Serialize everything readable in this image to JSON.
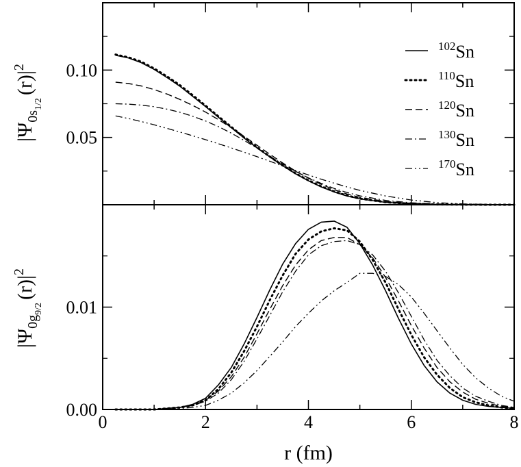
{
  "chart_data": [
    {
      "type": "line",
      "panel": "top",
      "ylabel": {
        "prefix": "|Ψ",
        "sub": "0s",
        "subsub": "1/2",
        "mid": "(r)|",
        "sup": "2"
      },
      "xlim": [
        0,
        8
      ],
      "ylim": [
        0,
        0.15
      ],
      "yticks": [
        {
          "v": 0.05,
          "label": "0.05"
        },
        {
          "v": 0.1,
          "label": "0.10"
        }
      ],
      "x": [
        0.25,
        0.5,
        0.75,
        1.0,
        1.25,
        1.5,
        1.75,
        2.0,
        2.25,
        2.5,
        2.75,
        3.0,
        3.25,
        3.5,
        3.75,
        4.0,
        4.25,
        4.5,
        4.75,
        5.0,
        5.5,
        6.0,
        6.5,
        7.0,
        7.5,
        8.0
      ],
      "series": [
        {
          "name": "102Sn",
          "nucleus": "Sn",
          "mass": "102",
          "style": "solid",
          "values": [
            0.111,
            0.109,
            0.1055,
            0.1005,
            0.0945,
            0.088,
            0.0805,
            0.0728,
            0.065,
            0.0572,
            0.0495,
            0.0422,
            0.0355,
            0.029,
            0.023,
            0.0178,
            0.0132,
            0.0095,
            0.0065,
            0.0043,
            0.0018,
            0.0006,
            0.0002,
            0.0001,
            0.0,
            0.0
          ]
        },
        {
          "name": "110Sn",
          "nucleus": "Sn",
          "mass": "110",
          "style": "dotted",
          "values": [
            0.1115,
            0.1095,
            0.1062,
            0.1012,
            0.0953,
            0.0888,
            0.0813,
            0.0735,
            0.0656,
            0.0578,
            0.05,
            0.0426,
            0.0357,
            0.0292,
            0.0233,
            0.0181,
            0.0136,
            0.0098,
            0.0068,
            0.0046,
            0.0019,
            0.0007,
            0.0002,
            0.0001,
            0.0,
            0.0
          ]
        },
        {
          "name": "120Sn",
          "nucleus": "Sn",
          "mass": "120",
          "style": "dashed",
          "values": [
            0.091,
            0.09,
            0.0882,
            0.0855,
            0.0822,
            0.0782,
            0.0738,
            0.0688,
            0.0632,
            0.0572,
            0.0508,
            0.0442,
            0.0375,
            0.031,
            0.025,
            0.0197,
            0.0151,
            0.0112,
            0.008,
            0.0055,
            0.0024,
            0.0009,
            0.0003,
            0.0001,
            0.0,
            0.0
          ]
        },
        {
          "name": "130Sn",
          "nucleus": "Sn",
          "mass": "130",
          "style": "dashdot",
          "values": [
            0.075,
            0.0747,
            0.074,
            0.0728,
            0.071,
            0.0687,
            0.0657,
            0.0622,
            0.058,
            0.0532,
            0.0478,
            0.042,
            0.036,
            0.0302,
            0.0248,
            0.02,
            0.0158,
            0.0121,
            0.0091,
            0.0066,
            0.0032,
            0.0014,
            0.0006,
            0.0002,
            0.0001,
            0.0
          ]
        },
        {
          "name": "170Sn",
          "nucleus": "Sn",
          "mass": "170",
          "style": "dashdotdot",
          "values": [
            0.066,
            0.064,
            0.0618,
            0.0594,
            0.0567,
            0.054,
            0.0512,
            0.0483,
            0.0453,
            0.0422,
            0.039,
            0.0357,
            0.0323,
            0.0288,
            0.0254,
            0.0221,
            0.0189,
            0.016,
            0.0132,
            0.0107,
            0.0065,
            0.0035,
            0.0016,
            0.0006,
            0.0002,
            0.0
          ]
        }
      ]
    },
    {
      "type": "line",
      "panel": "bottom",
      "xlabel": "r (fm)",
      "ylabel": {
        "prefix": "|Ψ",
        "sub": "0g",
        "subsub": "9/2",
        "mid": "(r)|",
        "sup": "2"
      },
      "xlim": [
        0,
        8
      ],
      "ylim": [
        0,
        0.02
      ],
      "xticks": [
        {
          "v": 0,
          "label": "0"
        },
        {
          "v": 2,
          "label": "2"
        },
        {
          "v": 4,
          "label": "4"
        },
        {
          "v": 6,
          "label": "6"
        },
        {
          "v": 8,
          "label": "8"
        }
      ],
      "yticks": [
        {
          "v": 0.0,
          "label": "0.00"
        },
        {
          "v": 0.01,
          "label": "0.01"
        }
      ],
      "x": [
        0.25,
        0.5,
        0.75,
        1.0,
        1.25,
        1.5,
        1.75,
        2.0,
        2.25,
        2.5,
        2.75,
        3.0,
        3.25,
        3.5,
        3.75,
        4.0,
        4.25,
        4.5,
        4.75,
        5.0,
        5.25,
        5.5,
        5.75,
        6.0,
        6.25,
        6.5,
        6.75,
        7.0,
        7.25,
        7.5,
        7.75,
        8.0
      ],
      "series": [
        {
          "name": "102Sn",
          "style": "solid",
          "values": [
            0.0,
            0.0,
            0.0,
            0.0,
            0.0001,
            0.0002,
            0.0005,
            0.0011,
            0.0024,
            0.0041,
            0.0064,
            0.009,
            0.0117,
            0.0142,
            0.0162,
            0.0176,
            0.0183,
            0.0184,
            0.0178,
            0.0162,
            0.0141,
            0.0116,
            0.0089,
            0.0064,
            0.0043,
            0.0027,
            0.0016,
            0.0009,
            0.0005,
            0.0003,
            0.0002,
            0.0001
          ]
        },
        {
          "name": "110Sn",
          "style": "dotted",
          "values": [
            0.0,
            0.0,
            0.0,
            0.0,
            0.0001,
            0.0002,
            0.0004,
            0.0009,
            0.002,
            0.0036,
            0.0057,
            0.0081,
            0.0107,
            0.0131,
            0.0152,
            0.0166,
            0.0174,
            0.0177,
            0.0175,
            0.0164,
            0.0146,
            0.0124,
            0.0098,
            0.0073,
            0.0051,
            0.0034,
            0.0021,
            0.0012,
            0.0007,
            0.0004,
            0.0002,
            0.0001
          ]
        },
        {
          "name": "120Sn",
          "style": "dashed",
          "values": [
            0.0,
            0.0,
            0.0,
            0.0,
            0.0001,
            0.0002,
            0.0004,
            0.0009,
            0.0018,
            0.0032,
            0.0051,
            0.0074,
            0.0098,
            0.0121,
            0.0141,
            0.0156,
            0.0165,
            0.0168,
            0.0168,
            0.0161,
            0.0148,
            0.0129,
            0.0106,
            0.0082,
            0.006,
            0.0041,
            0.0027,
            0.0017,
            0.001,
            0.0006,
            0.0003,
            0.0002
          ]
        },
        {
          "name": "130Sn",
          "style": "dashdot",
          "values": [
            0.0,
            0.0,
            0.0,
            0.0,
            0.0001,
            0.0002,
            0.0004,
            0.0008,
            0.0016,
            0.0029,
            0.0047,
            0.0069,
            0.0092,
            0.0115,
            0.0135,
            0.0151,
            0.016,
            0.0164,
            0.0165,
            0.0161,
            0.0151,
            0.0135,
            0.0114,
            0.0091,
            0.0068,
            0.0048,
            0.0033,
            0.0021,
            0.0013,
            0.0008,
            0.0004,
            0.0002
          ]
        },
        {
          "name": "170Sn",
          "style": "dashdotdot",
          "values": [
            0.0,
            0.0,
            0.0,
            0.0,
            0.0,
            0.0001,
            0.0002,
            0.0004,
            0.0009,
            0.0016,
            0.0026,
            0.0038,
            0.0052,
            0.0066,
            0.0081,
            0.0094,
            0.0106,
            0.0116,
            0.0124,
            0.0133,
            0.0133,
            0.013,
            0.0122,
            0.011,
            0.0094,
            0.0077,
            0.006,
            0.0044,
            0.0031,
            0.0021,
            0.0013,
            0.0008
          ]
        }
      ]
    }
  ]
}
